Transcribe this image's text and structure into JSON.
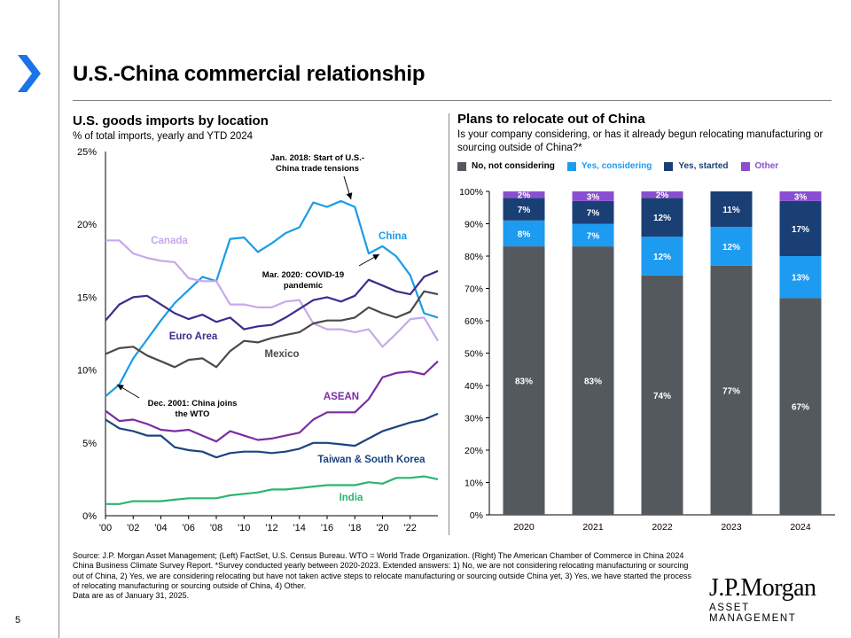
{
  "page": {
    "title": "U.S.-China commercial relationship",
    "page_number": "5",
    "logo": {
      "name": "J.P.Morgan",
      "sub": "ASSET MANAGEMENT"
    },
    "source": "Source: J.P. Morgan Asset Management; (Left) FactSet, U.S. Census Bureau. WTO = World Trade Organization. (Right) The American Chamber of Commerce in China 2024 China Business Climate Survey Report. *Survey conducted yearly between 2020-2023. Extended answers: 1) No, we are not considering relocating manufacturing or sourcing out of China, 2) Yes, we are considering relocating but have not taken active steps to relocate manufacturing or sourcing outside China yet, 3) Yes, we have started the process of relocating manufacturing or sourcing outside of China, 4) Other.",
    "data_note": "Data are as of January 31, 2025."
  },
  "left_panel": {
    "title": "U.S. goods imports by location",
    "subtitle": "% of total imports, yearly and YTD 2024"
  },
  "right_panel": {
    "title": "Plans to relocate out of China",
    "subtitle": "Is your company considering, or has it already begun relocating manufacturing or sourcing outside of China?*"
  },
  "colors": {
    "china": "#1a9be6",
    "canada": "#c8a8ec",
    "euro": "#3b2d8c",
    "mexico": "#4a4a4a",
    "asean": "#7a2da2",
    "taiwan": "#1a4580",
    "india": "#2bb56e",
    "no": "#54595e",
    "considering": "#1d9bf0",
    "started": "#1a3f75",
    "other": "#8a4fd0"
  },
  "chart_data": [
    {
      "type": "line",
      "title": "U.S. goods imports by location",
      "ylabel": "% of total imports",
      "x": [
        2000,
        2001,
        2002,
        2003,
        2004,
        2005,
        2006,
        2007,
        2008,
        2009,
        2010,
        2011,
        2012,
        2013,
        2014,
        2015,
        2016,
        2017,
        2018,
        2019,
        2020,
        2021,
        2022,
        2023,
        2024
      ],
      "xlim": [
        2000,
        2024
      ],
      "ylim": [
        0,
        25
      ],
      "x_ticks": [
        2000,
        2002,
        2004,
        2006,
        2008,
        2010,
        2012,
        2014,
        2016,
        2018,
        2020,
        2022
      ],
      "x_tick_labels": [
        "'00",
        "'02",
        "'04",
        "'06",
        "'08",
        "'10",
        "'12",
        "'14",
        "'16",
        "'18",
        "'20",
        "'22"
      ],
      "y_ticks": [
        0,
        5,
        10,
        15,
        20,
        25
      ],
      "y_tick_labels": [
        "0%",
        "5%",
        "10%",
        "15%",
        "20%",
        "25%"
      ],
      "series": [
        {
          "name": "China",
          "color_key": "china",
          "values": [
            8.2,
            9.0,
            10.8,
            12.1,
            13.4,
            14.6,
            15.5,
            16.4,
            16.1,
            19.0,
            19.1,
            18.1,
            18.7,
            19.4,
            19.8,
            21.5,
            21.2,
            21.6,
            21.2,
            18.0,
            18.5,
            17.8,
            16.5,
            13.9,
            13.6
          ]
        },
        {
          "name": "Canada",
          "color_key": "canada",
          "values": [
            18.9,
            18.9,
            18.0,
            17.7,
            17.5,
            17.4,
            16.3,
            16.1,
            16.1,
            14.5,
            14.5,
            14.3,
            14.3,
            14.7,
            14.8,
            13.2,
            12.8,
            12.8,
            12.6,
            12.8,
            11.6,
            12.5,
            13.5,
            13.6,
            12.0
          ]
        },
        {
          "name": "Euro Area",
          "color_key": "euro",
          "values": [
            13.4,
            14.5,
            15.0,
            15.1,
            14.5,
            13.9,
            13.5,
            13.8,
            13.3,
            13.6,
            12.8,
            13.0,
            13.1,
            13.6,
            14.2,
            14.8,
            15.0,
            14.7,
            15.1,
            16.2,
            15.8,
            15.4,
            15.2,
            16.4,
            16.8
          ]
        },
        {
          "name": "Mexico",
          "color_key": "mexico",
          "values": [
            11.1,
            11.5,
            11.6,
            11.0,
            10.6,
            10.2,
            10.7,
            10.8,
            10.2,
            11.3,
            12.0,
            11.9,
            12.2,
            12.4,
            12.6,
            13.2,
            13.4,
            13.4,
            13.6,
            14.3,
            13.9,
            13.6,
            14.0,
            15.4,
            15.2
          ]
        },
        {
          "name": "ASEAN",
          "color_key": "asean",
          "values": [
            7.2,
            6.5,
            6.6,
            6.3,
            5.9,
            5.8,
            5.9,
            5.5,
            5.1,
            5.8,
            5.5,
            5.2,
            5.3,
            5.5,
            5.7,
            6.6,
            7.1,
            7.1,
            7.1,
            8.0,
            9.5,
            9.8,
            9.9,
            9.7,
            10.6
          ]
        },
        {
          "name": "Taiwan & South Korea",
          "color_key": "taiwan",
          "values": [
            6.6,
            6.0,
            5.8,
            5.5,
            5.5,
            4.7,
            4.5,
            4.4,
            4.0,
            4.3,
            4.4,
            4.4,
            4.3,
            4.4,
            4.6,
            5.0,
            5.0,
            4.9,
            4.8,
            5.3,
            5.8,
            6.1,
            6.4,
            6.6,
            7.0
          ]
        },
        {
          "name": "India",
          "color_key": "india",
          "values": [
            0.8,
            0.8,
            1.0,
            1.0,
            1.0,
            1.1,
            1.2,
            1.2,
            1.2,
            1.4,
            1.5,
            1.6,
            1.8,
            1.8,
            1.9,
            2.0,
            2.1,
            2.1,
            2.1,
            2.3,
            2.2,
            2.6,
            2.6,
            2.7,
            2.5
          ]
        }
      ],
      "annotations": [
        {
          "text": [
            "Jan. 2018: Start of U.S.-",
            "China trade tensions"
          ],
          "x": 2017.9,
          "y": 21.2
        },
        {
          "text": [
            "Mar. 2020: COVID-19",
            "pandemic"
          ],
          "x": 2019.5,
          "y": 18.0
        },
        {
          "text": [
            "Dec. 2001: China joins",
            "the WTO"
          ],
          "x": 2001.0,
          "y": 8.5
        }
      ]
    },
    {
      "type": "bar",
      "stacked": true,
      "title": "Plans to relocate out of China",
      "categories": [
        "2020",
        "2021",
        "2022",
        "2023",
        "2024"
      ],
      "ylim": [
        0,
        100
      ],
      "y_ticks": [
        0,
        10,
        20,
        30,
        40,
        50,
        60,
        70,
        80,
        90,
        100
      ],
      "y_tick_labels": [
        "0%",
        "10%",
        "20%",
        "30%",
        "40%",
        "50%",
        "60%",
        "70%",
        "80%",
        "90%",
        "100%"
      ],
      "series": [
        {
          "name": "No, not considering",
          "color_key": "no",
          "values": [
            83,
            83,
            74,
            77,
            67
          ],
          "labels": [
            "83%",
            "83%",
            "74%",
            "77%",
            "67%"
          ]
        },
        {
          "name": "Yes, considering",
          "color_key": "considering",
          "values": [
            8,
            7,
            12,
            12,
            13
          ],
          "labels": [
            "8%",
            "7%",
            "12%",
            "12%",
            "13%"
          ]
        },
        {
          "name": "Yes, started",
          "color_key": "started",
          "values": [
            7,
            7,
            12,
            11,
            17
          ],
          "labels": [
            "7%",
            "7%",
            "12%",
            "11%",
            "17%"
          ]
        },
        {
          "name": "Other",
          "color_key": "other",
          "values": [
            2,
            3,
            2,
            0,
            3
          ],
          "labels": [
            "2%",
            "3%",
            "2%",
            "",
            "3%"
          ]
        }
      ]
    }
  ]
}
